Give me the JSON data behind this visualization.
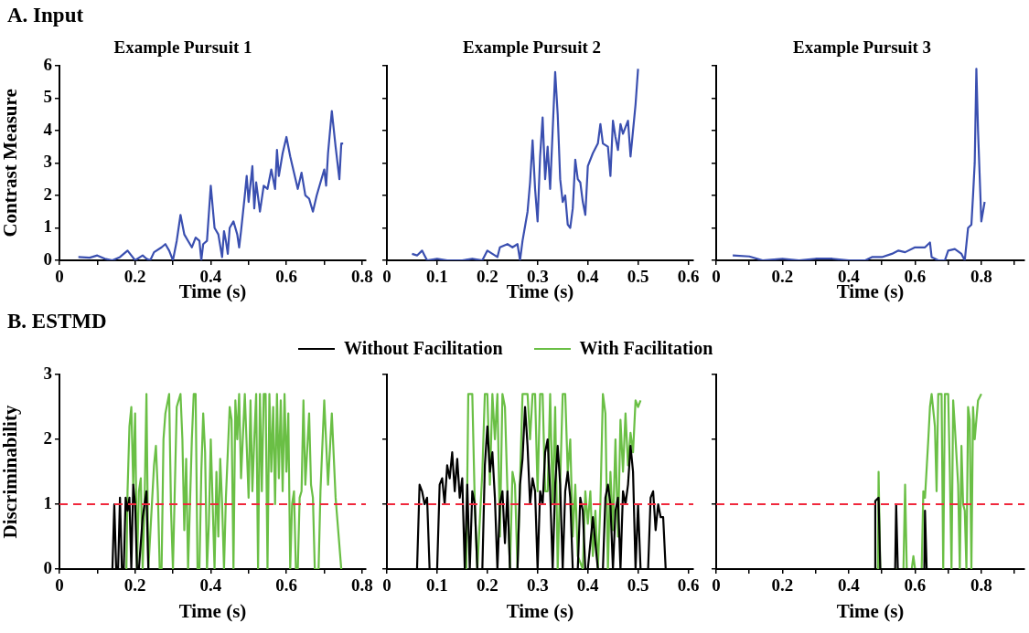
{
  "chart_data": [
    {
      "type": "line",
      "title": "Example Pursuit 1",
      "xlabel": "Time (s)",
      "ylabel": "Contrast Measure",
      "annotations": [
        "A. Input"
      ],
      "xlim": [
        0,
        0.81
      ],
      "ylim": [
        0,
        6
      ],
      "xticks": [
        0,
        {
          "value": 0.1,
          "label": null
        },
        0.2,
        {
          "value": 0.3,
          "label": null
        },
        0.4,
        {
          "value": 0.5,
          "label": null
        },
        0.6,
        {
          "value": 0.7,
          "label": null
        },
        0.8
      ],
      "yticks": [
        0,
        1,
        2,
        3,
        4,
        5,
        6
      ],
      "series": [
        {
          "color": "#3a4fb0",
          "x": [
            0.05,
            0.08,
            0.1,
            0.12,
            0.14,
            0.16,
            0.18,
            0.19,
            0.2,
            0.22,
            0.23,
            0.24,
            0.25,
            0.27,
            0.28,
            0.29,
            0.3,
            0.31,
            0.32,
            0.33,
            0.34,
            0.35,
            0.36,
            0.37,
            0.375,
            0.38,
            0.39,
            0.4,
            0.41,
            0.42,
            0.43,
            0.435,
            0.44,
            0.445,
            0.45,
            0.46,
            0.47,
            0.475,
            0.48,
            0.49,
            0.495,
            0.5,
            0.51,
            0.515,
            0.52,
            0.53,
            0.54,
            0.55,
            0.56,
            0.57,
            0.575,
            0.58,
            0.59,
            0.6,
            0.61,
            0.62,
            0.63,
            0.64,
            0.65,
            0.66,
            0.67,
            0.68,
            0.69,
            0.7,
            0.705,
            0.71,
            0.72,
            0.73,
            0.74,
            0.745,
            0.75
          ],
          "values": [
            0.1,
            0.08,
            0.15,
            0.05,
            0,
            0.1,
            0.3,
            0.15,
            0,
            0.15,
            0.05,
            0,
            0.25,
            0.4,
            0.5,
            0.3,
            0,
            0.6,
            1.4,
            0.8,
            0.6,
            0.4,
            0.7,
            0.6,
            0,
            0.5,
            0.6,
            2.3,
            1,
            0.8,
            0.1,
            0.9,
            0.6,
            0.2,
            1,
            1.2,
            0.8,
            0.4,
            0.9,
            2,
            2.6,
            1.8,
            2.9,
            1.6,
            2.4,
            1.5,
            2.3,
            2.2,
            2.8,
            2.2,
            3.4,
            2.6,
            3.3,
            3.8,
            3.2,
            2.7,
            2.2,
            2.7,
            2,
            1.9,
            1.5,
            2,
            2.4,
            2.8,
            2.3,
            3.3,
            4.6,
            3.5,
            2.5,
            3.6,
            3.6
          ]
        }
      ]
    },
    {
      "type": "line",
      "title": "Example Pursuit 2",
      "xlabel": "Time (s)",
      "xlim": [
        0,
        0.61
      ],
      "ylim": [
        0,
        6
      ],
      "tick_labels": "x",
      "xticks": [
        0,
        0.1,
        0.2,
        0.3,
        0.4,
        0.5,
        0.6
      ],
      "yticks": [
        0,
        1,
        2,
        3,
        4,
        5,
        6
      ],
      "series": [
        {
          "color": "#3a4fb0",
          "x": [
            0.05,
            0.06,
            0.07,
            0.075,
            0.08,
            0.1,
            0.12,
            0.15,
            0.17,
            0.19,
            0.2,
            0.21,
            0.22,
            0.225,
            0.24,
            0.25,
            0.26,
            0.265,
            0.27,
            0.28,
            0.285,
            0.29,
            0.295,
            0.3,
            0.305,
            0.31,
            0.315,
            0.32,
            0.325,
            0.33,
            0.335,
            0.34,
            0.345,
            0.35,
            0.355,
            0.36,
            0.365,
            0.37,
            0.375,
            0.38,
            0.385,
            0.39,
            0.395,
            0.4,
            0.41,
            0.42,
            0.425,
            0.43,
            0.44,
            0.445,
            0.45,
            0.455,
            0.46,
            0.465,
            0.47,
            0.48,
            0.485,
            0.49,
            0.495,
            0.5
          ],
          "values": [
            0.2,
            0.15,
            0.3,
            0.15,
            0,
            0.05,
            0,
            0,
            0.05,
            0,
            0.3,
            0.2,
            0.1,
            0.4,
            0.5,
            0.4,
            0.5,
            0,
            0.6,
            1.5,
            2.4,
            3.7,
            2.2,
            1.2,
            3.2,
            4.4,
            2.5,
            3.5,
            2.2,
            4,
            5.8,
            4.5,
            2.5,
            1.8,
            2,
            1.1,
            1,
            1.6,
            3.1,
            2.5,
            2.4,
            1.8,
            1.4,
            2.9,
            3.3,
            3.6,
            4.2,
            3.6,
            3.5,
            2.6,
            4.3,
            3.8,
            3.4,
            4.2,
            3.9,
            4.3,
            3.2,
            4,
            4.8,
            5.9
          ]
        }
      ]
    },
    {
      "type": "line",
      "title": "Example Pursuit 3",
      "xlabel": "Time (s)",
      "xlim": [
        0,
        0.93
      ],
      "ylim": [
        0,
        6
      ],
      "tick_labels": "x",
      "xticks": [
        0,
        {
          "value": 0.1,
          "label": null
        },
        0.2,
        {
          "value": 0.3,
          "label": null
        },
        0.4,
        {
          "value": 0.5,
          "label": null
        },
        0.6,
        {
          "value": 0.7,
          "label": null
        },
        0.8,
        {
          "value": 0.9,
          "label": null
        }
      ],
      "yticks": [
        0,
        1,
        2,
        3,
        4,
        5,
        6
      ],
      "series": [
        {
          "color": "#3a4fb0",
          "x": [
            0.05,
            0.1,
            0.14,
            0.2,
            0.25,
            0.3,
            0.35,
            0.4,
            0.45,
            0.47,
            0.5,
            0.53,
            0.55,
            0.57,
            0.6,
            0.63,
            0.645,
            0.65,
            0.67,
            0.69,
            0.7,
            0.72,
            0.74,
            0.75,
            0.76,
            0.77,
            0.775,
            0.78,
            0.785,
            0.79,
            0.8,
            0.81
          ],
          "values": [
            0.15,
            0.12,
            0,
            0.05,
            0,
            0.05,
            0.05,
            0,
            0,
            0.1,
            0.1,
            0.2,
            0.3,
            0.25,
            0.4,
            0.4,
            0.55,
            0.1,
            0,
            0,
            0.3,
            0.35,
            0.2,
            0,
            1,
            1.1,
            2,
            3,
            5.9,
            4,
            1.2,
            1.8
          ]
        }
      ]
    },
    {
      "type": "line",
      "xlabel": "Time (s)",
      "ylabel": "Discriminability",
      "annotations": [
        "B. ESTMD"
      ],
      "legend": "top",
      "xlim": [
        0,
        0.81
      ],
      "ylim": [
        0,
        3
      ],
      "xticks": [
        0,
        {
          "value": 0.1,
          "label": null
        },
        0.2,
        {
          "value": 0.3,
          "label": null
        },
        0.4,
        {
          "value": 0.5,
          "label": null
        },
        0.6,
        {
          "value": 0.7,
          "label": null
        },
        0.8
      ],
      "yticks": [
        0,
        1,
        2,
        3
      ],
      "ref_lines": [
        {
          "axis": "y",
          "value": 1,
          "color": "#f0283c",
          "line_style": "dashed"
        }
      ],
      "series": [
        {
          "name": "Without Facilitation",
          "color": "#000000",
          "x": [
            0.14,
            0.145,
            0.15,
            0.155,
            0.16,
            0.165,
            0.17,
            0.175,
            0.18,
            0.185,
            0.19,
            0.195,
            0.2,
            0.205,
            0.21,
            0.22,
            0.225,
            0.23,
            0.235,
            0.24
          ],
          "values": [
            0,
            1,
            0,
            0,
            1.1,
            0,
            0,
            1.1,
            0.9,
            1.1,
            0,
            1.3,
            1,
            0,
            0,
            0.8,
            1,
            1.2,
            0,
            0
          ]
        },
        {
          "name": "With Facilitation",
          "color": "#6abf45",
          "x": [
            0.177,
            0.18,
            0.185,
            0.19,
            0.195,
            0.2,
            0.205,
            0.21,
            0.215,
            0.22,
            0.225,
            0.23,
            0.235,
            0.25,
            0.255,
            0.26,
            0.265,
            0.27,
            0.275,
            0.28,
            0.29,
            0.295,
            0.3,
            0.31,
            0.32,
            0.325,
            0.33,
            0.335,
            0.34,
            0.35,
            0.355,
            0.36,
            0.365,
            0.37,
            0.375,
            0.38,
            0.385,
            0.39,
            0.395,
            0.4,
            0.41,
            0.415,
            0.42,
            0.425,
            0.43,
            0.435,
            0.44,
            0.45,
            0.455,
            0.46,
            0.465,
            0.47,
            0.475,
            0.48,
            0.49,
            0.5,
            0.505,
            0.51,
            0.515,
            0.52,
            0.525,
            0.53,
            0.535,
            0.54,
            0.545,
            0.55,
            0.555,
            0.56,
            0.565,
            0.57,
            0.575,
            0.58,
            0.585,
            0.59,
            0.595,
            0.6,
            0.605,
            0.61,
            0.615,
            0.62,
            0.625,
            0.63,
            0.635,
            0.64,
            0.645,
            0.65,
            0.66,
            0.665,
            0.67,
            0.675,
            0.685,
            0.69,
            0.7,
            0.71,
            0.72,
            0.73,
            0.745
          ],
          "values": [
            0,
            1.2,
            2.2,
            2.5,
            1.3,
            2.4,
            0,
            1.2,
            1.4,
            0,
            1,
            2.7,
            0,
            1.6,
            1.9,
            1.2,
            0,
            0,
            2,
            2.4,
            2.7,
            0.9,
            0,
            2.5,
            2.7,
            2,
            0.6,
            1.7,
            0,
            2,
            2.7,
            2.7,
            0,
            0,
            1.5,
            2.4,
            1.8,
            0,
            0.7,
            2,
            0,
            1.5,
            0.5,
            1.7,
            1,
            0,
            1.1,
            2.5,
            2.3,
            0,
            2.6,
            2,
            2.7,
            1.4,
            2.7,
            1.1,
            2.6,
            1.2,
            2,
            2.7,
            0,
            2.7,
            1.2,
            2.7,
            2.7,
            0,
            2.7,
            1.5,
            2.5,
            1,
            2.7,
            1.4,
            2.6,
            1.2,
            2.7,
            1.5,
            2.4,
            0,
            1,
            1.2,
            0,
            0,
            1.1,
            1.2,
            2.6,
            1.3,
            2.4,
            1.3,
            1.1,
            0,
            0,
            1.2,
            2.6,
            1.3,
            2.4,
            1.1,
            0
          ]
        }
      ]
    },
    {
      "type": "line",
      "xlabel": "Time (s)",
      "xlim": [
        0,
        0.61
      ],
      "ylim": [
        0,
        3
      ],
      "tick_labels": "x",
      "xticks": [
        0,
        0.1,
        0.2,
        0.3,
        0.4,
        0.5,
        0.6
      ],
      "yticks": [
        0,
        1,
        2,
        3
      ],
      "ref_lines": [
        {
          "axis": "y",
          "value": 1,
          "color": "#f0283c",
          "line_style": "dashed"
        }
      ],
      "series": [
        {
          "color": "#000000",
          "x": [
            0.06,
            0.065,
            0.07,
            0.075,
            0.08,
            0.085,
            0.09,
            0.1,
            0.105,
            0.11,
            0.115,
            0.12,
            0.125,
            0.13,
            0.135,
            0.14,
            0.145,
            0.15,
            0.155,
            0.16,
            0.165,
            0.17,
            0.175,
            0.18,
            0.19,
            0.195,
            0.2,
            0.205,
            0.21,
            0.215,
            0.22,
            0.225,
            0.23,
            0.235,
            0.24,
            0.245,
            0.26,
            0.265,
            0.27,
            0.275,
            0.28,
            0.285,
            0.29,
            0.295,
            0.3,
            0.305,
            0.31,
            0.315,
            0.32,
            0.325,
            0.33,
            0.335,
            0.34,
            0.345,
            0.35,
            0.355,
            0.36,
            0.365,
            0.37,
            0.38,
            0.385,
            0.39,
            0.395,
            0.4,
            0.41,
            0.42,
            0.43,
            0.435,
            0.44,
            0.445,
            0.45,
            0.455,
            0.46,
            0.465,
            0.47,
            0.475,
            0.48,
            0.485,
            0.49,
            0.495,
            0.5,
            0.505,
            0.52,
            0.525,
            0.53,
            0.535,
            0.54,
            0.545,
            0.55,
            0.555
          ],
          "values": [
            0,
            1.3,
            1.2,
            1,
            1.1,
            0,
            0,
            0,
            1.3,
            1.4,
            1,
            1.6,
            1.4,
            1.8,
            1.2,
            1.7,
            1.1,
            1.4,
            0,
            1.3,
            0,
            1.2,
            1,
            0,
            0,
            1.6,
            2.2,
            1.5,
            1.8,
            1.1,
            0,
            1,
            1.2,
            0.4,
            1.2,
            0,
            0,
            1.3,
            1.7,
            2.5,
            1.9,
            1,
            1.4,
            1.2,
            0,
            1.2,
            1,
            1.8,
            2,
            1.2,
            0,
            1.3,
            1.9,
            1.3,
            0,
            1.2,
            1.5,
            1.1,
            0,
            0,
            1.1,
            0.9,
            0,
            0,
            0.8,
            0,
            0,
            1.1,
            1.3,
            1,
            0,
            0.9,
            1.1,
            0,
            1.2,
            1,
            1.3,
            1.9,
            1.5,
            0,
            1,
            0,
            0,
            1.1,
            1.2,
            0.6,
            1,
            0.8,
            0.8,
            0
          ]
        },
        {
          "color": "#6abf45",
          "x": [
            0.158,
            0.162,
            0.17,
            0.175,
            0.18,
            0.19,
            0.195,
            0.2,
            0.205,
            0.21,
            0.215,
            0.22,
            0.225,
            0.23,
            0.235,
            0.24,
            0.245,
            0.25,
            0.255,
            0.26,
            0.27,
            0.28,
            0.285,
            0.29,
            0.295,
            0.3,
            0.305,
            0.31,
            0.315,
            0.32,
            0.325,
            0.33,
            0.335,
            0.34,
            0.35,
            0.355,
            0.36,
            0.365,
            0.37,
            0.375,
            0.38,
            0.39,
            0.395,
            0.4,
            0.405,
            0.41,
            0.415,
            0.42,
            0.425,
            0.43,
            0.435,
            0.44,
            0.445,
            0.45,
            0.455,
            0.46,
            0.465,
            0.47,
            0.475,
            0.48,
            0.485,
            0.49,
            0.495,
            0.5,
            0.505
          ],
          "values": [
            0,
            2.7,
            2.7,
            1,
            0,
            1.5,
            2.7,
            2.7,
            1.3,
            2.7,
            2,
            2.7,
            0.5,
            2.7,
            2.5,
            1.2,
            0,
            1.5,
            1.3,
            0,
            2.7,
            2.7,
            2,
            2.7,
            2.7,
            1.2,
            2.7,
            2.7,
            1.2,
            1.2,
            2.7,
            1,
            2.5,
            0,
            2.7,
            2.7,
            1.5,
            2,
            0.5,
            1.3,
            0.2,
            0,
            1.2,
            0.7,
            1.2,
            0.2,
            0.9,
            0,
            1,
            2.7,
            2.4,
            0,
            1.5,
            0.6,
            2,
            0.5,
            2.3,
            1.5,
            2.4,
            1.6,
            2.1,
            1.8,
            2.6,
            2.5,
            2.6
          ]
        }
      ]
    },
    {
      "type": "line",
      "xlabel": "Time (s)",
      "xlim": [
        0,
        0.93
      ],
      "ylim": [
        0,
        3
      ],
      "tick_labels": "x",
      "xticks": [
        0,
        {
          "value": 0.1,
          "label": null
        },
        0.2,
        {
          "value": 0.3,
          "label": null
        },
        0.4,
        {
          "value": 0.5,
          "label": null
        },
        0.6,
        {
          "value": 0.7,
          "label": null
        },
        0.8,
        {
          "value": 0.9,
          "label": null
        }
      ],
      "yticks": [
        0,
        1,
        2,
        3
      ],
      "ref_lines": [
        {
          "axis": "y",
          "value": 1,
          "color": "#f0283c",
          "line_style": "dashed"
        }
      ],
      "series": [
        {
          "color": "#000000",
          "x": [
            0.478,
            0.48,
            0.49,
            0.495,
            0.54,
            0.543,
            0.548,
            0.628,
            0.63,
            0.635
          ],
          "values": [
            0,
            1.05,
            1.1,
            0,
            0,
            1,
            0,
            0,
            0.9,
            0
          ]
        },
        {
          "color": "#6abf45",
          "x": [
            0.488,
            0.49,
            0.495,
            0.565,
            0.57,
            0.575,
            0.59,
            0.595,
            0.6,
            0.62,
            0.625,
            0.63,
            0.64,
            0.645,
            0.65,
            0.66,
            0.665,
            0.67,
            0.68,
            0.685,
            0.69,
            0.7,
            0.705,
            0.71,
            0.715,
            0.72,
            0.73,
            0.735,
            0.74,
            0.745,
            0.75,
            0.755,
            0.76,
            0.765,
            0.77,
            0.775,
            0.78,
            0.79,
            0.8
          ],
          "values": [
            0,
            1.5,
            0,
            0,
            1.3,
            0,
            0,
            0.2,
            0,
            0,
            1.2,
            1.1,
            2,
            2.5,
            2.7,
            2.2,
            1.2,
            2.7,
            2.7,
            0,
            2.7,
            2.7,
            1.5,
            0,
            2.6,
            2.2,
            1.3,
            0,
            1.9,
            1,
            0.9,
            0,
            2.5,
            2.3,
            0,
            2.5,
            2,
            2.6,
            2.7
          ]
        }
      ]
    }
  ]
}
